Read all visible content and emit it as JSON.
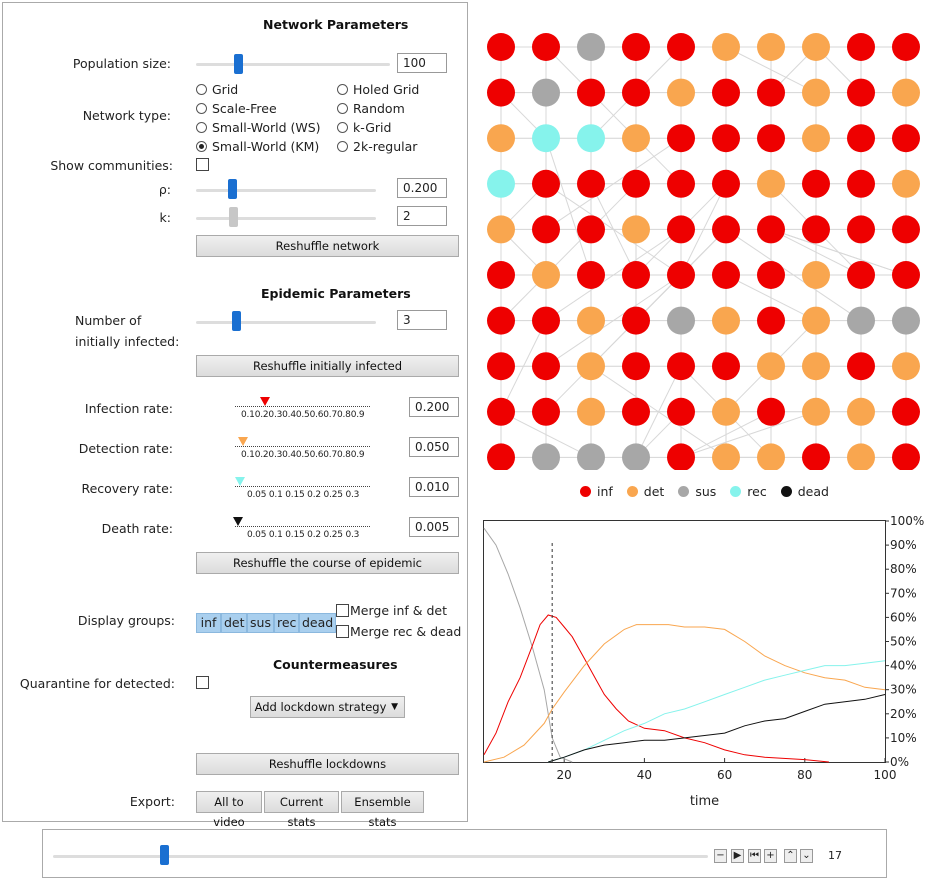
{
  "network": {
    "title": "Network Parameters",
    "population_label": "Population size:",
    "population_value": "100",
    "network_type_label": "Network type:",
    "network_types": [
      "Grid",
      "Holed Grid",
      "Scale-Free",
      "Random",
      "Small-World (WS)",
      "k-Grid",
      "Small-World (KM)",
      "2k-regular"
    ],
    "selected_type": "Small-World (KM)",
    "communities_label": "Show communities:",
    "rho_label": "ρ:",
    "rho_value": "0.200",
    "k_label": "k:",
    "k_value": "2",
    "reshuffle_label": "Reshuffle network"
  },
  "epidemic": {
    "title": "Epidemic Parameters",
    "initially_infected_label_1": "Number of",
    "initially_infected_label_2": "initially infected:",
    "initially_infected_value": "3",
    "reshuffle_infected_label": "Reshuffle initially infected",
    "infection_label": "Infection rate:",
    "infection_value": "0.200",
    "detection_label": "Detection rate:",
    "detection_value": "0.050",
    "recovery_label": "Recovery rate:",
    "recovery_value": "0.010",
    "death_label": "Death rate:",
    "death_value": "0.005",
    "ticks_long": "0.10.20.30.40.50.60.70.80.9",
    "ticks_short": "0.05    0.1   0.15    0.2   0.25    0.3",
    "reshuffle_course_label": "Reshuffle the course of epidemic"
  },
  "display": {
    "label": "Display groups:",
    "groups": [
      "inf",
      "det",
      "sus",
      "rec",
      "dead"
    ],
    "merge_inf_det": "Merge inf & det",
    "merge_rec_dead": "Merge rec & dead"
  },
  "countermeasures": {
    "title": "Countermeasures",
    "quarantine_label": "Quarantine for detected:",
    "lockdown_label": "Add lockdown strategy",
    "reshuffle_lockdowns_label": "Reshuffle lockdowns"
  },
  "export": {
    "label": "Export:",
    "buttons": [
      "All to video",
      "Current stats",
      "Ensemble stats"
    ]
  },
  "colors": {
    "inf": "#ee0000",
    "det": "#f9a64f",
    "sus": "#a7a7a7",
    "rec": "#86f3ec",
    "dead": "#111111"
  },
  "grid_states": [
    [
      "inf",
      "inf",
      "sus",
      "inf",
      "inf",
      "det",
      "det",
      "det",
      "inf",
      "inf"
    ],
    [
      "inf",
      "sus",
      "inf",
      "inf",
      "det",
      "inf",
      "inf",
      "det",
      "inf",
      "det"
    ],
    [
      "det",
      "rec",
      "rec",
      "det",
      "inf",
      "inf",
      "inf",
      "det",
      "inf",
      "inf"
    ],
    [
      "rec",
      "inf",
      "inf",
      "inf",
      "inf",
      "inf",
      "det",
      "inf",
      "inf",
      "det"
    ],
    [
      "det",
      "inf",
      "inf",
      "det",
      "inf",
      "inf",
      "inf",
      "inf",
      "inf",
      "inf"
    ],
    [
      "inf",
      "det",
      "inf",
      "inf",
      "inf",
      "inf",
      "inf",
      "det",
      "inf",
      "inf"
    ],
    [
      "inf",
      "inf",
      "det",
      "inf",
      "sus",
      "det",
      "inf",
      "det",
      "sus",
      "sus"
    ],
    [
      "inf",
      "inf",
      "det",
      "inf",
      "inf",
      "inf",
      "det",
      "det",
      "inf",
      "det"
    ],
    [
      "inf",
      "inf",
      "det",
      "inf",
      "inf",
      "det",
      "inf",
      "det",
      "det",
      "inf"
    ],
    [
      "inf",
      "sus",
      "sus",
      "sus",
      "inf",
      "det",
      "det",
      "inf",
      "det",
      "inf"
    ]
  ],
  "legend": [
    {
      "key": "inf",
      "label": "inf"
    },
    {
      "key": "det",
      "label": "det"
    },
    {
      "key": "sus",
      "label": "sus"
    },
    {
      "key": "rec",
      "label": "rec"
    },
    {
      "key": "dead",
      "label": "dead"
    }
  ],
  "chart_data": {
    "type": "line",
    "xlabel": "time",
    "xlim": [
      0,
      100
    ],
    "ylim": [
      0,
      100
    ],
    "x_ticks": [
      20,
      40,
      60,
      80,
      100
    ],
    "y_ticks": [
      "0%",
      "10%",
      "20%",
      "30%",
      "40%",
      "50%",
      "60%",
      "70%",
      "80%",
      "90%",
      "100%"
    ],
    "marker_time": 17,
    "series": [
      {
        "key": "sus",
        "x": [
          0,
          3,
          6,
          9,
          12,
          15,
          17,
          19,
          22
        ],
        "y": [
          97,
          90,
          78,
          64,
          48,
          30,
          10,
          2,
          0
        ]
      },
      {
        "key": "inf",
        "x": [
          0,
          3,
          6,
          9,
          12,
          14,
          16,
          18,
          20,
          22,
          25,
          28,
          30,
          33,
          36,
          40,
          45,
          50,
          55,
          60,
          65,
          70,
          80,
          86
        ],
        "y": [
          3,
          12,
          25,
          35,
          48,
          57,
          61,
          60,
          56,
          52,
          43,
          34,
          28,
          22,
          17,
          14,
          13,
          10,
          8,
          5,
          3,
          2,
          1,
          0
        ]
      },
      {
        "key": "det",
        "x": [
          0,
          5,
          10,
          15,
          17,
          20,
          25,
          30,
          35,
          38,
          42,
          46,
          50,
          55,
          60,
          65,
          70,
          75,
          80,
          85,
          90,
          95,
          100
        ],
        "y": [
          0,
          2,
          7,
          16,
          22,
          29,
          40,
          49,
          55,
          57,
          57,
          57,
          56,
          56,
          55,
          50,
          44,
          40,
          37,
          35,
          34,
          31,
          30
        ]
      },
      {
        "key": "rec",
        "x": [
          16,
          20,
          25,
          30,
          35,
          40,
          45,
          50,
          55,
          60,
          65,
          70,
          75,
          80,
          85,
          90,
          95,
          100
        ],
        "y": [
          0,
          2,
          5,
          9,
          13,
          16,
          20,
          22,
          25,
          28,
          31,
          34,
          36,
          38,
          40,
          40,
          41,
          42
        ]
      },
      {
        "key": "dead",
        "x": [
          16,
          20,
          25,
          30,
          35,
          40,
          45,
          50,
          55,
          60,
          65,
          70,
          75,
          80,
          85,
          90,
          95,
          100
        ],
        "y": [
          0,
          2,
          5,
          7,
          8,
          9,
          9,
          10,
          11,
          12,
          15,
          17,
          18,
          21,
          24,
          25,
          26,
          28
        ]
      }
    ]
  },
  "timeline": {
    "value": "17",
    "position_fraction": 0.17
  }
}
